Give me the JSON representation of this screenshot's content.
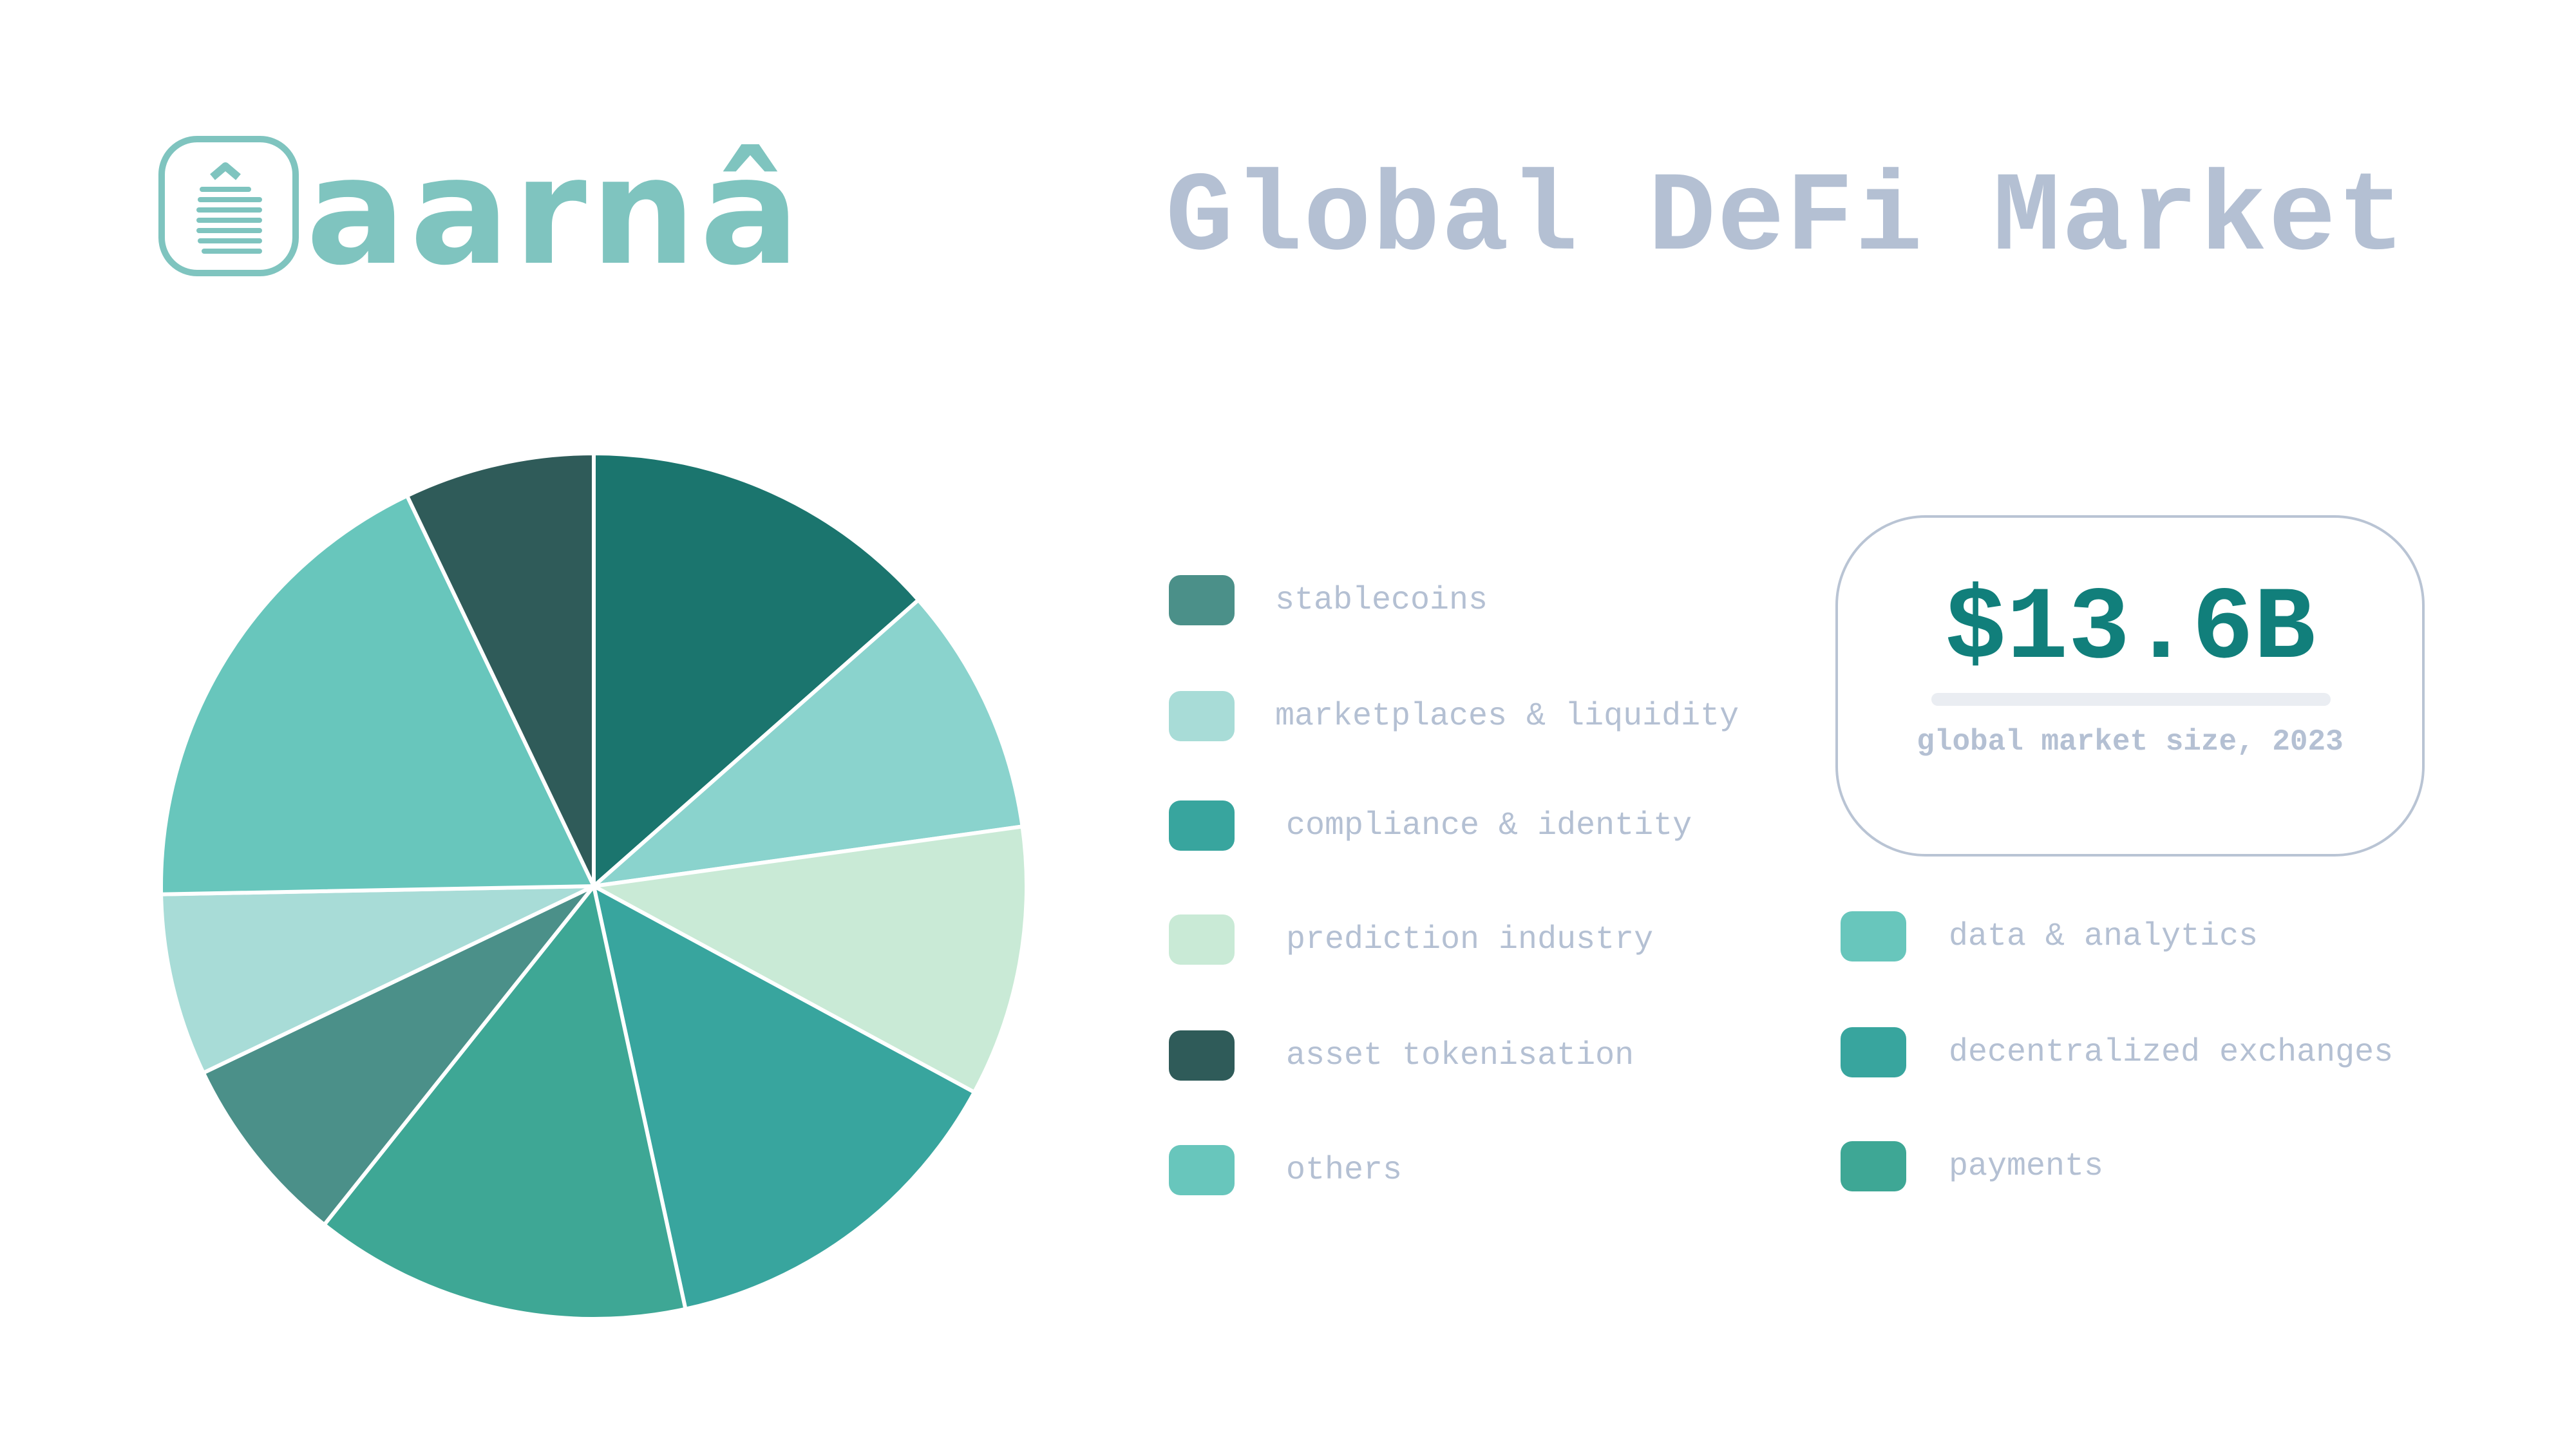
{
  "brand": {
    "name": "aarnâ",
    "logo_color": "#7fc4bf"
  },
  "title": "Global DeFi Market",
  "stat": {
    "value": "$13.6B",
    "caption": "global market size, 2023",
    "value_color": "#117f7b"
  },
  "chart_data": {
    "type": "pie",
    "slices": [
      {
        "label": "decentralized exchanges",
        "value": 13.5,
        "color": "#1b756e"
      },
      {
        "label": "marketplaces & liquidity",
        "value": 9.3,
        "color": "#8ad3cd"
      },
      {
        "label": "prediction industry",
        "value": 10.1,
        "color": "#c9ead6"
      },
      {
        "label": "compliance & identity",
        "value": 13.7,
        "color": "#38a59e"
      },
      {
        "label": "payments",
        "value": 14.1,
        "color": "#3ea795"
      },
      {
        "label": "stablecoins",
        "value": 7.2,
        "color": "#4b9089"
      },
      {
        "label": "marketplaces & liquidity",
        "value": 6.8,
        "color": "#a8dcd7"
      },
      {
        "label": "data & analytics",
        "value": 18.2,
        "color": "#68c6bc"
      },
      {
        "label": "asset tokenisation",
        "value": 7.1,
        "color": "#2f5b59"
      }
    ]
  },
  "legend": [
    {
      "label": "stablecoins",
      "color": "#4b9089"
    },
    {
      "label": "marketplaces & liquidity",
      "color": "#a8dcd7"
    },
    {
      "label": "compliance & identity",
      "color": "#38a59e"
    },
    {
      "label": "prediction industry",
      "color": "#c9ead6"
    },
    {
      "label": "asset tokenisation",
      "color": "#2f5b59"
    },
    {
      "label": "others",
      "color": "#68c6bc"
    },
    {
      "label": "data & analytics",
      "color": "#68c6bc"
    },
    {
      "label": "decentralized exchanges",
      "color": "#38a59e"
    },
    {
      "label": "payments",
      "color": "#3ea795"
    }
  ]
}
